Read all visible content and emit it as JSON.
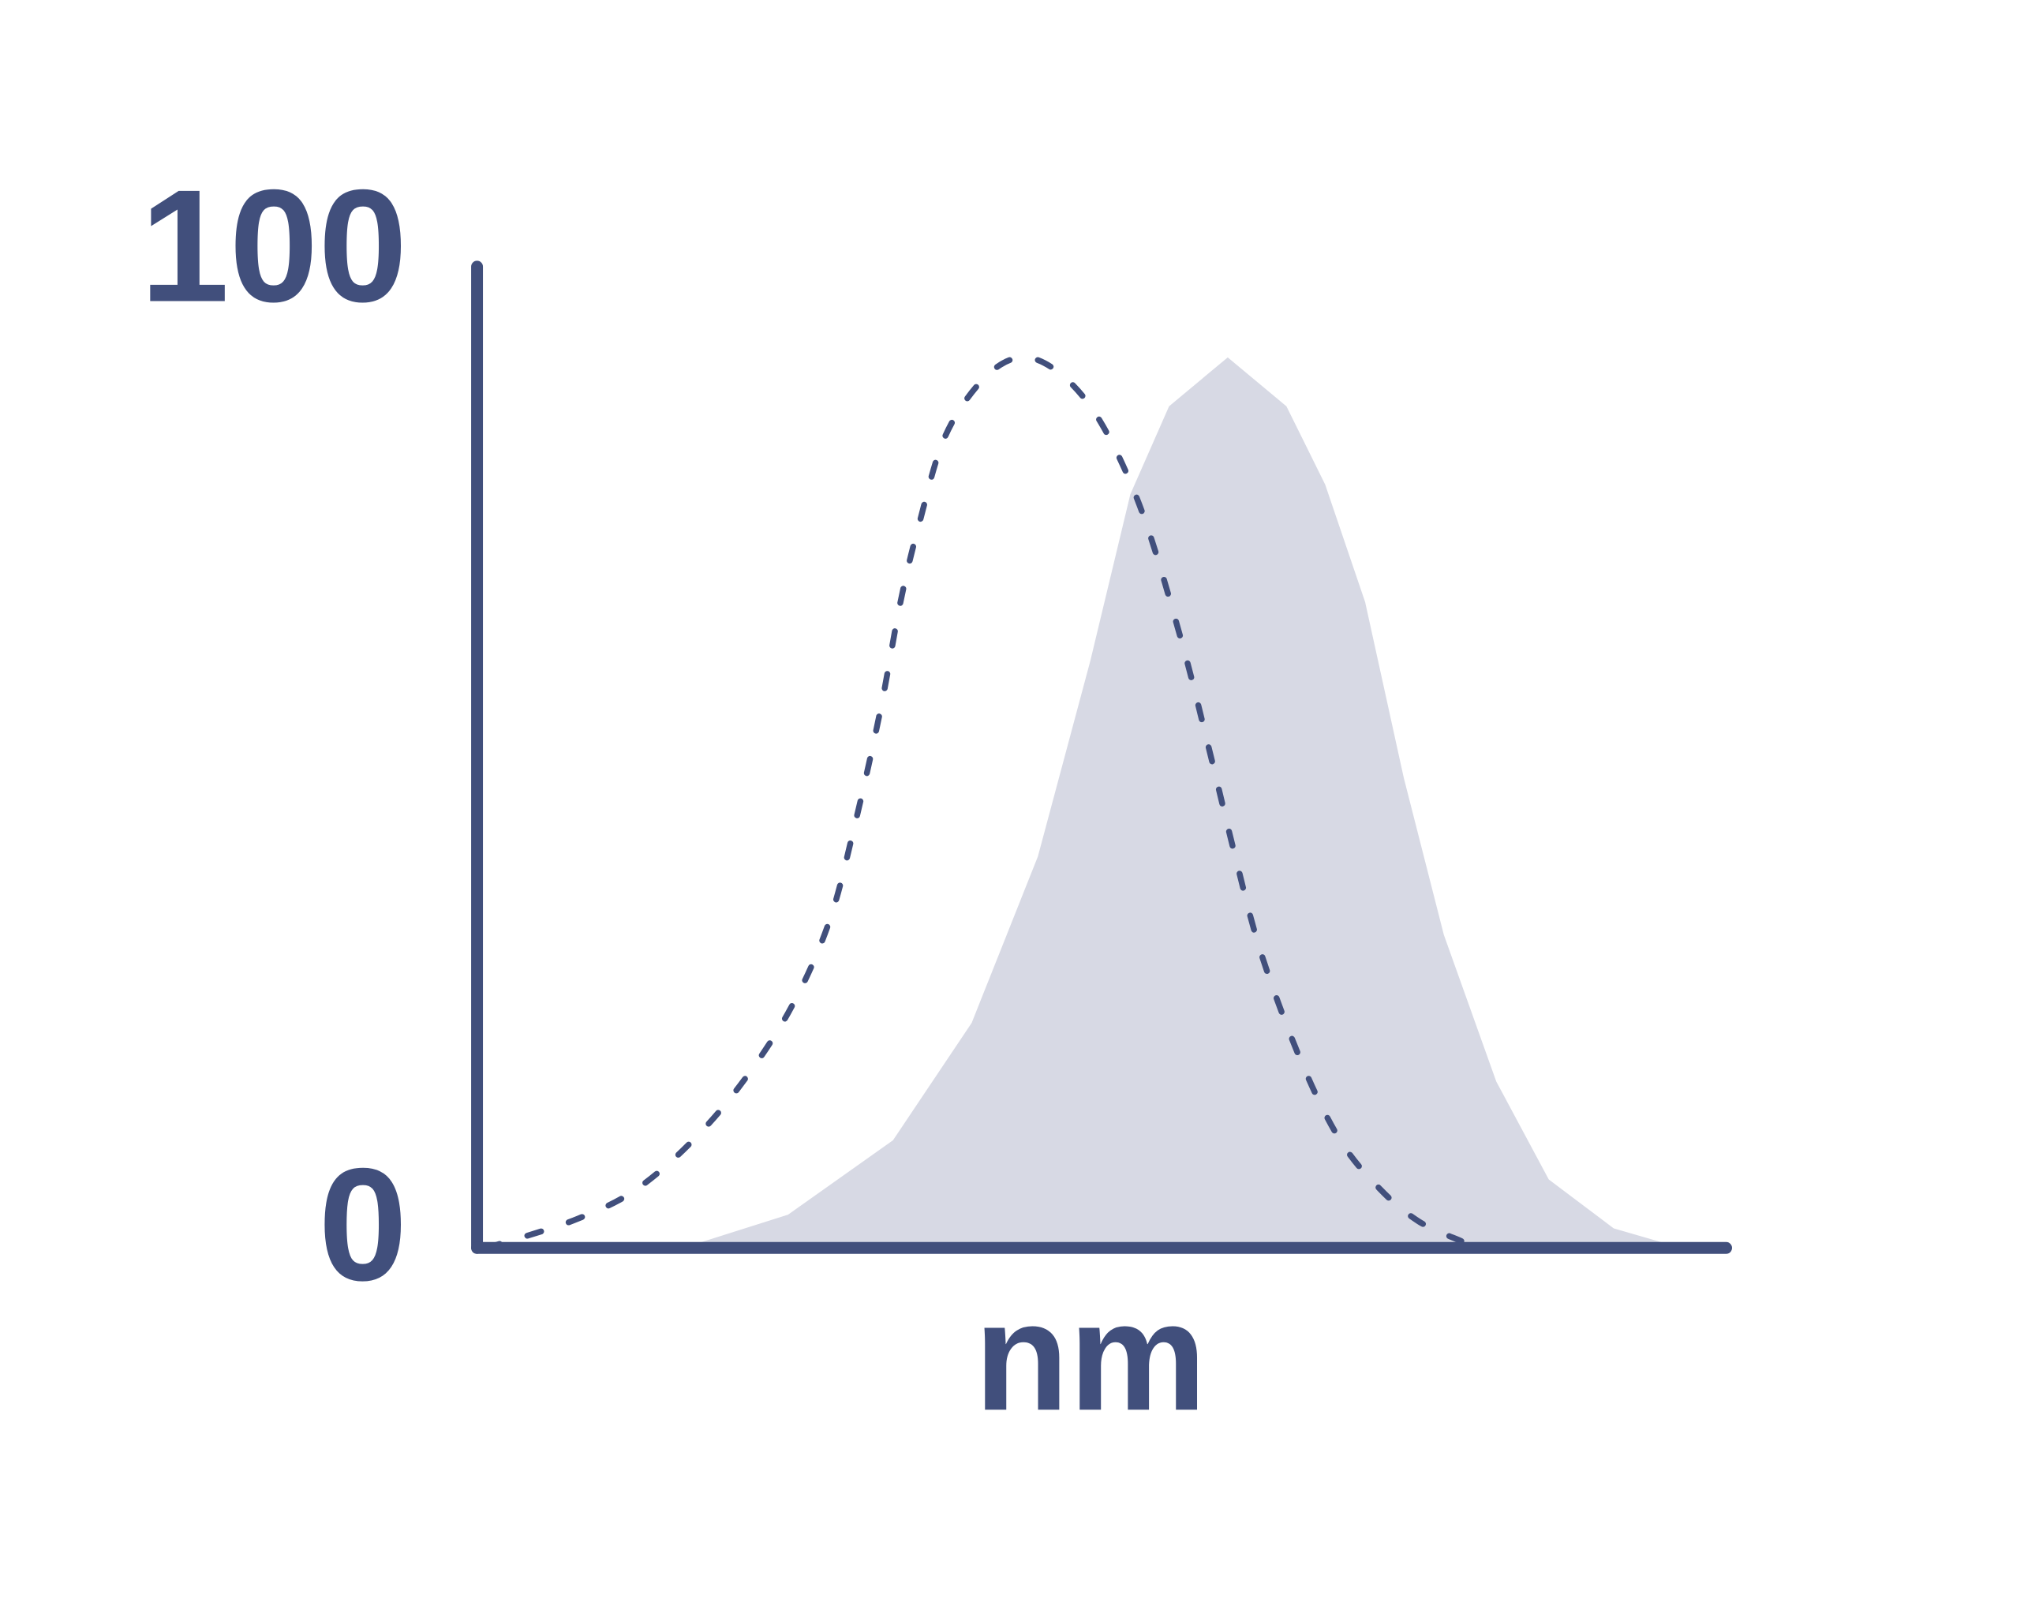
{
  "chart_data": {
    "type": "line",
    "x_label": "nm",
    "ylim": [
      0,
      100
    ],
    "yticks": [
      0,
      100
    ],
    "xlim": [
      0,
      100
    ],
    "series": [
      {
        "style": "dashed",
        "color": "#414f7c",
        "x": [
          0.7,
          3.9,
          8.1,
          12.3,
          16.5,
          20.7,
          24.9,
          28.1,
          30.2,
          32.3,
          33.9,
          35.4,
          37.5,
          40.7,
          43.8,
          47,
          50.1,
          53.3,
          56.4,
          58.6,
          60.7,
          62.8,
          66,
          69.1,
          72.3,
          75.4,
          78.8
        ],
        "values": [
          0,
          1.2,
          3,
          5.6,
          10,
          16,
          24,
          33,
          43,
          55,
          66,
          74,
          83,
          89,
          91,
          89,
          84,
          75,
          62,
          51,
          40,
          30,
          19,
          11,
          6,
          2.7,
          0.7
        ]
      },
      {
        "style": "area",
        "color": "#d7d9e4",
        "x": [
          16.5,
          24.9,
          33.3,
          39.6,
          44.9,
          49.1,
          52.3,
          55.4,
          60.1,
          64.8,
          67.9,
          71.1,
          74.2,
          77.4,
          81.6,
          85.8,
          91,
          96.4
        ],
        "values": [
          0,
          3.4,
          11,
          23,
          40,
          60,
          77,
          86,
          91,
          86,
          78,
          66,
          48,
          32,
          17,
          7,
          2,
          0
        ]
      }
    ]
  }
}
